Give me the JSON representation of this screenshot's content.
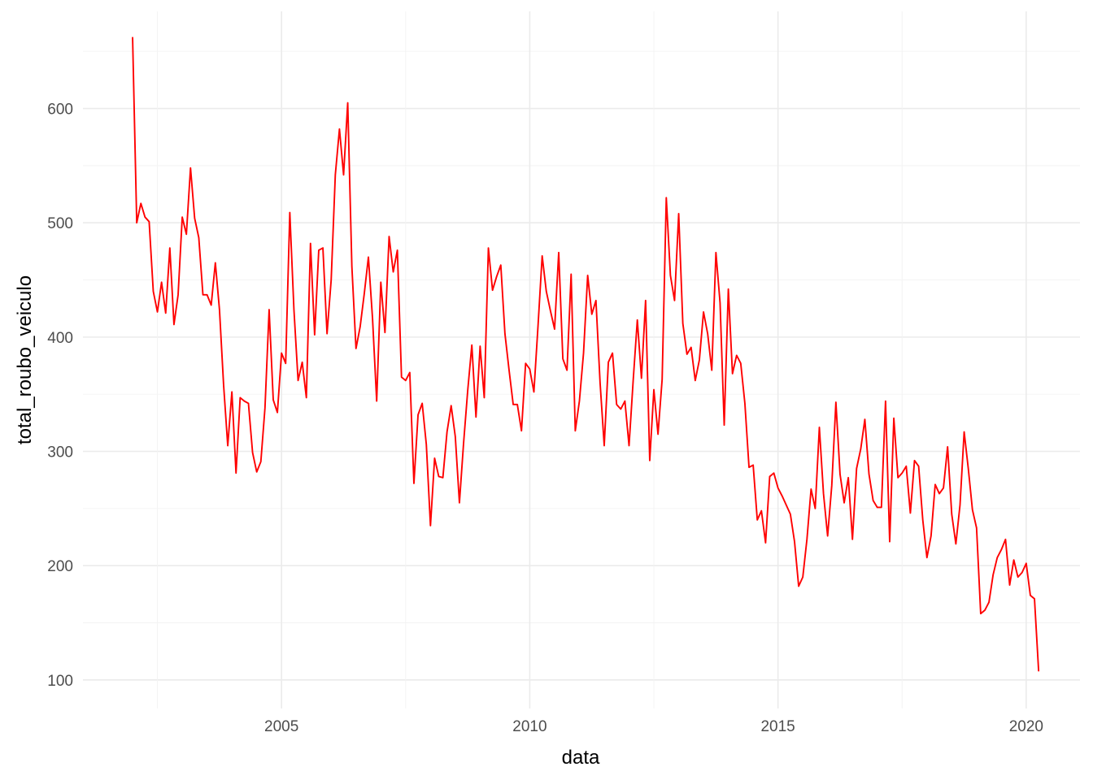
{
  "chart_data": {
    "type": "line",
    "xlabel": "data",
    "ylabel": "total_roubo_veiculo",
    "x_ticks": [
      "2005",
      "2010",
      "2015",
      "2020"
    ],
    "y_ticks": [
      "100",
      "200",
      "300",
      "400",
      "500",
      "600"
    ],
    "xlim": [
      "2001-01-01",
      "2021-02-01"
    ],
    "ylim": [
      75,
      685
    ],
    "grid": true,
    "line_color": "#ff0000",
    "series": [
      {
        "x": [
          "2002-01",
          "2002-02",
          "2002-03",
          "2002-04",
          "2002-05",
          "2002-06",
          "2002-07",
          "2002-08",
          "2002-09",
          "2002-10",
          "2002-11",
          "2002-12",
          "2003-01",
          "2003-02",
          "2003-03",
          "2003-04",
          "2003-05",
          "2003-06",
          "2003-07",
          "2003-08",
          "2003-09",
          "2003-10",
          "2003-11",
          "2003-12",
          "2004-01",
          "2004-02",
          "2004-03",
          "2004-04",
          "2004-05",
          "2004-06",
          "2004-07",
          "2004-08",
          "2004-09",
          "2004-10",
          "2004-11",
          "2004-12",
          "2005-01",
          "2005-02",
          "2005-03",
          "2005-04",
          "2005-05",
          "2005-06",
          "2005-07",
          "2005-08",
          "2005-09",
          "2005-10",
          "2005-11",
          "2005-12",
          "2006-01",
          "2006-02",
          "2006-03",
          "2006-04",
          "2006-05",
          "2006-06",
          "2006-07",
          "2006-08",
          "2006-09",
          "2006-10",
          "2006-11",
          "2006-12",
          "2007-01",
          "2007-02",
          "2007-03",
          "2007-04",
          "2007-05",
          "2007-06",
          "2007-07",
          "2007-08",
          "2007-09",
          "2007-10",
          "2007-11",
          "2007-12",
          "2008-01",
          "2008-02",
          "2008-03",
          "2008-04",
          "2008-05",
          "2008-06",
          "2008-07",
          "2008-08",
          "2008-09",
          "2008-10",
          "2008-11",
          "2008-12",
          "2009-01",
          "2009-02",
          "2009-03",
          "2009-04",
          "2009-05",
          "2009-06",
          "2009-07",
          "2009-08",
          "2009-09",
          "2009-10",
          "2009-11",
          "2009-12",
          "2010-01",
          "2010-02",
          "2010-03",
          "2010-04",
          "2010-05",
          "2010-06",
          "2010-07",
          "2010-08",
          "2010-09",
          "2010-10",
          "2010-11",
          "2010-12",
          "2011-01",
          "2011-02",
          "2011-03",
          "2011-04",
          "2011-05",
          "2011-06",
          "2011-07",
          "2011-08",
          "2011-09",
          "2011-10",
          "2011-11",
          "2011-12",
          "2012-01",
          "2012-02",
          "2012-03",
          "2012-04",
          "2012-05",
          "2012-06",
          "2012-07",
          "2012-08",
          "2012-09",
          "2012-10",
          "2012-11",
          "2012-12",
          "2013-01",
          "2013-02",
          "2013-03",
          "2013-04",
          "2013-05",
          "2013-06",
          "2013-07",
          "2013-08",
          "2013-09",
          "2013-10",
          "2013-11",
          "2013-12",
          "2014-01",
          "2014-02",
          "2014-03",
          "2014-04",
          "2014-05",
          "2014-06",
          "2014-07",
          "2014-08",
          "2014-09",
          "2014-10",
          "2014-11",
          "2014-12",
          "2015-01",
          "2015-02",
          "2015-03",
          "2015-04",
          "2015-05",
          "2015-06",
          "2015-07",
          "2015-08",
          "2015-09",
          "2015-10",
          "2015-11",
          "2015-12",
          "2016-01",
          "2016-02",
          "2016-03",
          "2016-04",
          "2016-05",
          "2016-06",
          "2016-07",
          "2016-08",
          "2016-09",
          "2016-10",
          "2016-11",
          "2016-12",
          "2017-01",
          "2017-02",
          "2017-03",
          "2017-04",
          "2017-05",
          "2017-06",
          "2017-07",
          "2017-08",
          "2017-09",
          "2017-10",
          "2017-11",
          "2017-12",
          "2018-01",
          "2018-02",
          "2018-03",
          "2018-04",
          "2018-05",
          "2018-06",
          "2018-07",
          "2018-08",
          "2018-09",
          "2018-10",
          "2018-11",
          "2018-12",
          "2019-01",
          "2019-02",
          "2019-03",
          "2019-04",
          "2019-05",
          "2019-06",
          "2019-07",
          "2019-08",
          "2019-09",
          "2019-10",
          "2019-11",
          "2019-12",
          "2020-01",
          "2020-02",
          "2020-03",
          "2020-04"
        ],
        "values": [
          662,
          500,
          517,
          505,
          501,
          440,
          422,
          448,
          421,
          478,
          411,
          437,
          505,
          490,
          548,
          504,
          487,
          437,
          437,
          428,
          465,
          424,
          358,
          305,
          352,
          281,
          347,
          344,
          342,
          299,
          282,
          291,
          338,
          424,
          345,
          334,
          386,
          377,
          509,
          424,
          362,
          378,
          347,
          482,
          402,
          476,
          478,
          403,
          450,
          542,
          582,
          542,
          605,
          462,
          390,
          409,
          438,
          470,
          416,
          344,
          448,
          404,
          488,
          457,
          476,
          365,
          362,
          369,
          272,
          332,
          342,
          306,
          235,
          294,
          278,
          277,
          317,
          340,
          313,
          255,
          307,
          353,
          393,
          330,
          392,
          347,
          478,
          441,
          453,
          463,
          403,
          371,
          341,
          341,
          318,
          377,
          372,
          352,
          410,
          471,
          440,
          423,
          407,
          474,
          381,
          371,
          455,
          318,
          344,
          386,
          454,
          420,
          432,
          360,
          305,
          378,
          386,
          341,
          337,
          344,
          305,
          362,
          415,
          364,
          432,
          292,
          354,
          315,
          363,
          522,
          454,
          432,
          508,
          412,
          385,
          391,
          362,
          380,
          422,
          403,
          371,
          474,
          430,
          323,
          442,
          368,
          384,
          377,
          342,
          286,
          288,
          240,
          248,
          220,
          278,
          281,
          268,
          261,
          253,
          245,
          221,
          182,
          190,
          223,
          267,
          250,
          321,
          263,
          226,
          270,
          343,
          280,
          255,
          277,
          223,
          285,
          302,
          328,
          280,
          257,
          251,
          251,
          344,
          221,
          329,
          277,
          281,
          287,
          246,
          292,
          287,
          240,
          207,
          226,
          271,
          263,
          268,
          304,
          245,
          219,
          253,
          317,
          285,
          249,
          233,
          158,
          161,
          168,
          192,
          207,
          214,
          223,
          183,
          205,
          190,
          194,
          202,
          174,
          171,
          108
        ]
      }
    ]
  }
}
